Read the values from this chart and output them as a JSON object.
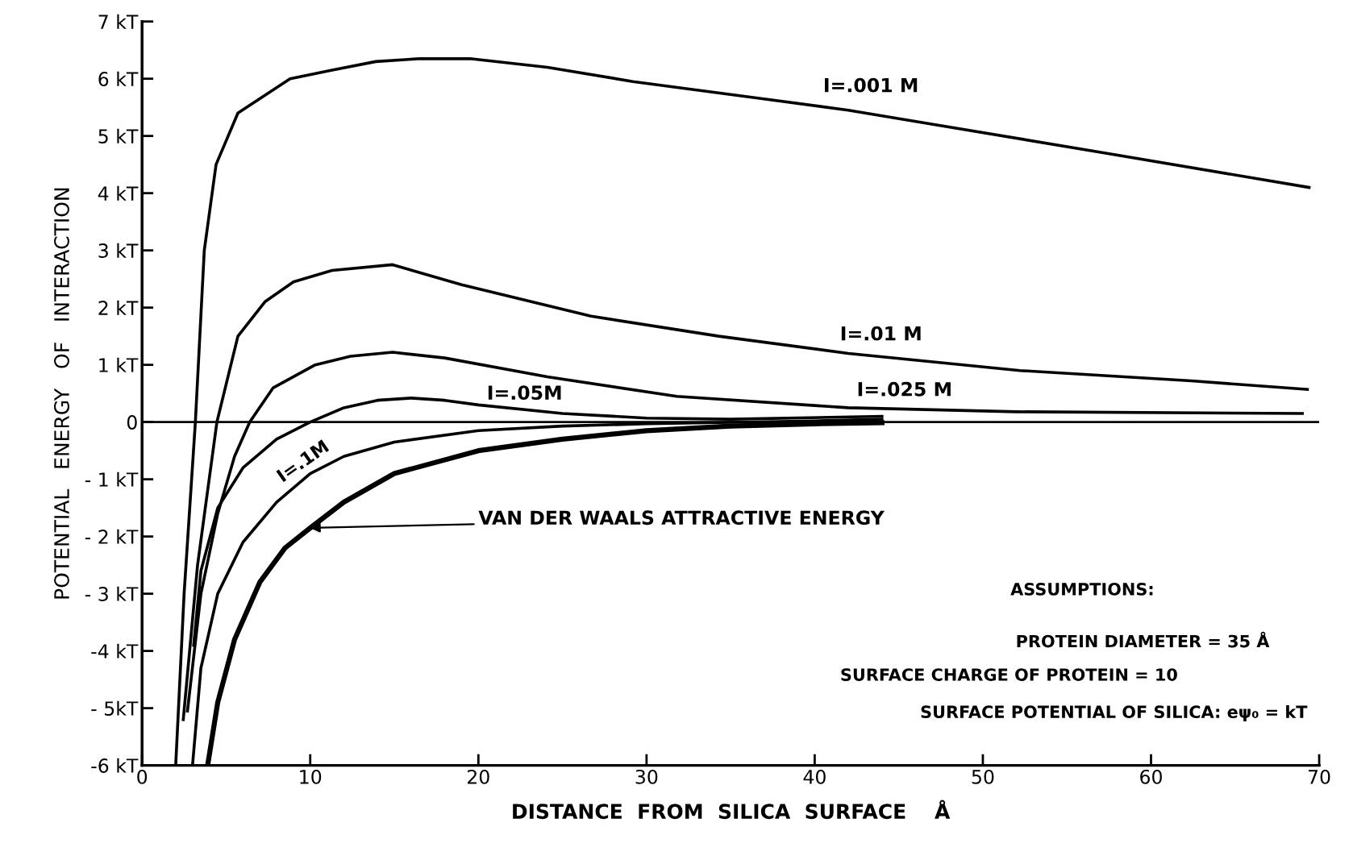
{
  "chart_data": {
    "type": "line",
    "xlabel": "DISTANCE  FROM  SILICA  SURFACE    Å",
    "ylabel": "POTENTIAL   ENERGY   OF   INTERACTION",
    "xlim": [
      0,
      70
    ],
    "xticks": [
      0,
      10,
      20,
      30,
      40,
      50,
      60,
      70
    ],
    "ylim": [
      -6,
      7
    ],
    "yticks": [
      {
        "value": -6,
        "label": "-6 kT"
      },
      {
        "value": -5,
        "label": "- 5kT"
      },
      {
        "value": -4,
        "label": "-4 kT"
      },
      {
        "value": -3,
        "label": "- 3 kT"
      },
      {
        "value": -2,
        "label": "- 2 kT"
      },
      {
        "value": -1,
        "label": "- 1 kT"
      },
      0,
      {
        "value": 1,
        "label": "1 kT"
      },
      {
        "value": 2,
        "label": "2 kT"
      },
      {
        "value": 3,
        "label": "3 kT"
      },
      {
        "value": 4,
        "label": "4 kT"
      },
      {
        "value": 5,
        "label": "5 kT"
      },
      {
        "value": 6,
        "label": "6 kT"
      },
      {
        "value": 7,
        "label": "7 kT"
      }
    ],
    "grid": false,
    "marker": "none",
    "line_style": "solid",
    "ref_lines": [
      {
        "axis": "y",
        "value": 0,
        "color": "#000000"
      }
    ],
    "series": [
      {
        "name": "I=.001 M",
        "color": "#000000",
        "x": [
          2.0,
          2.5,
          3.17,
          3.7,
          4.4,
          5.7,
          8.8,
          11.3,
          13.9,
          16.5,
          19.5,
          24.1,
          29.2,
          36.9,
          42,
          47.1,
          57.3,
          69.4
        ],
        "values": [
          -6,
          -3,
          0,
          3.0,
          4.5,
          5.4,
          6.0,
          6.15,
          6.3,
          6.35,
          6.35,
          6.2,
          5.95,
          5.65,
          5.45,
          5.2,
          4.7,
          4.1
        ]
      },
      {
        "name": "I=.01 M",
        "color": "#000000",
        "x": [
          2.45,
          3.3,
          4.45,
          5.7,
          7.3,
          9,
          11.3,
          14.9,
          19,
          26.7,
          34.3,
          42,
          52.2,
          62.4,
          69.3
        ],
        "values": [
          -5.2,
          -2.5,
          0,
          1.5,
          2.1,
          2.45,
          2.65,
          2.75,
          2.4,
          1.85,
          1.5,
          1.2,
          0.9,
          0.72,
          0.57
        ]
      },
      {
        "name": "I=.025 M",
        "color": "#000000",
        "x": [
          2.7,
          3.5,
          4.5,
          5.5,
          6.4,
          7.8,
          10.3,
          12.4,
          14.9,
          18,
          24.1,
          31.8,
          42,
          52,
          69
        ],
        "values": [
          -5.05,
          -3.0,
          -1.6,
          -0.6,
          0,
          0.6,
          1.0,
          1.15,
          1.22,
          1.12,
          0.79,
          0.45,
          0.25,
          0.18,
          0.15
        ]
      },
      {
        "name": "I=.05M",
        "color": "#000000",
        "x": [
          3.07,
          3.5,
          4.5,
          6,
          8,
          10,
          12,
          14,
          16,
          18,
          20,
          25,
          30,
          35,
          44
        ],
        "values": [
          -3.9,
          -2.6,
          -1.5,
          -0.8,
          -0.3,
          0,
          0.25,
          0.38,
          0.42,
          0.38,
          0.3,
          0.15,
          0.07,
          0.05,
          0.1
        ]
      },
      {
        "name": "I=.1M",
        "color": "#000000",
        "x": [
          3.0,
          3.5,
          4.5,
          6,
          8,
          10,
          12,
          15,
          20,
          25,
          30,
          40,
          44
        ],
        "values": [
          -6,
          -4.3,
          -3.0,
          -2.1,
          -1.4,
          -0.9,
          -0.6,
          -0.35,
          -0.15,
          -0.07,
          -0.03,
          0.02,
          0.05
        ]
      },
      {
        "color": "#000000",
        "x": [
          3.9,
          4.5,
          5.5,
          7,
          8.5,
          10,
          12,
          15,
          20,
          25,
          30,
          35,
          40,
          44
        ],
        "values": [
          -6,
          -4.9,
          -3.8,
          -2.8,
          -2.2,
          -1.85,
          -1.4,
          -0.9,
          -0.5,
          -0.3,
          -0.15,
          -0.07,
          -0.03,
          -0.01
        ]
      }
    ],
    "annotations": [
      {
        "text": "VAN DER WAALS ATTRACTIVE ENERGY",
        "x": 10,
        "y": -1.85
      },
      "ASSUMPTIONS:",
      "PROTEIN DIAMETER = 35 Å",
      "SURFACE CHARGE OF PROTEIN = 10",
      "SURFACE POTENTIAL OF SILICA: eψ₀ = kT"
    ]
  }
}
